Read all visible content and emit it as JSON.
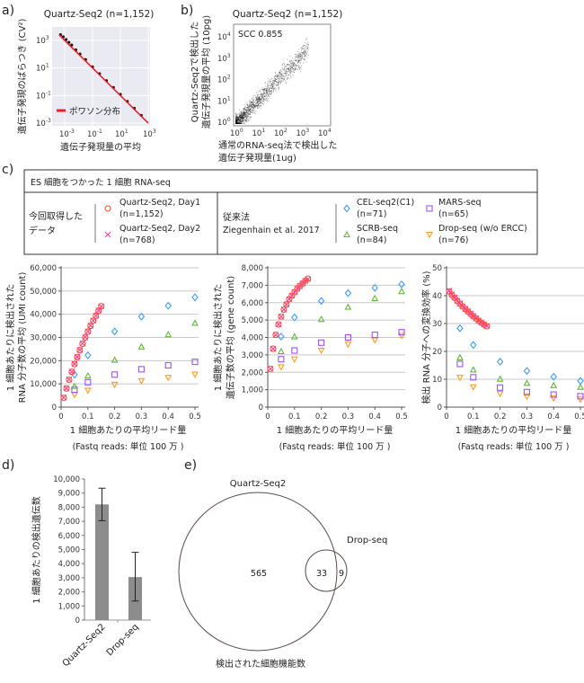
{
  "panels": {
    "a": {
      "label": "a)",
      "title": "Quartz-Seq2 (n=1,152)",
      "xlabel": "遺伝子発現量の平均",
      "ylabel": "遺伝子発現のばらつき (CV²)",
      "legend": "ポワソン分布"
    },
    "b": {
      "label": "b)",
      "title": "Quartz-Seq2 (n=1,152)",
      "xlabel_lines": [
        "通常のRNA-seq法で検出した",
        "遺伝子発現量(1ug)"
      ],
      "ylabel_lines": [
        "Quartz-Seq2で検出した",
        "遺伝子発現量の平均 (10pg)"
      ],
      "annotation": "SCC 0.855"
    },
    "c": {
      "label": "c)"
    },
    "d": {
      "label": "d)"
    },
    "e": {
      "label": "e)"
    }
  },
  "legend_box": {
    "header": "ES 細胞をつかった 1 細胞 RNA-seq",
    "left_title_lines": [
      "今回取得した",
      "データ"
    ],
    "left_items": [
      {
        "name": "Quartz-Seq2, Day1",
        "n": "(n=1,152)",
        "marker": "circle",
        "color": "#ff4a3d"
      },
      {
        "name": "Quartz-Seq2, Day2",
        "n": "(n=768)",
        "marker": "cross",
        "color": "#ff3b9a"
      }
    ],
    "right_title_lines": [
      "従来法",
      "Ziegenhain et al. 2017"
    ],
    "right_items": [
      {
        "name": "CEL-seq2(C1)",
        "n": "(n=71)",
        "marker": "diamond",
        "color": "#3d9bff"
      },
      {
        "name": "SCRB-seq",
        "n": "(n=84)",
        "marker": "triangle",
        "color": "#62b83a"
      },
      {
        "name": "MARS-seq",
        "n": "(n=65)",
        "marker": "square",
        "color": "#9a55f0"
      },
      {
        "name": "Drop-seq (w/o ERCC)",
        "n": "(n=76)",
        "marker": "triangle-down",
        "color": "#ff9a1f"
      }
    ]
  },
  "chart_data": [
    {
      "id": "a",
      "type": "scatter",
      "xscale": "log",
      "yscale": "log",
      "title": "Quartz-Seq2 (n=1,152)",
      "xlabel": "遺伝子発現量の平均",
      "ylabel": "遺伝子発現のばらつき (CV²)",
      "xtick_exponents": [
        -3,
        -1,
        1,
        3
      ],
      "ytick_exponents": [
        -3,
        -1,
        1,
        3
      ],
      "xlim_exp": [
        -3.9,
        3.2
      ],
      "ylim_exp": [
        -3.2,
        4.0
      ],
      "grid": true,
      "legend": "bottom-left",
      "poisson_line": {
        "name": "ポワソン分布",
        "color": "#e8202a",
        "x_exp_range": [
          -3.4,
          3.0
        ],
        "relation": "CV² = 1 / mean"
      },
      "observed_log10": [
        [
          -3.3,
          3.35
        ],
        [
          -3.1,
          3.2
        ],
        [
          -2.9,
          3.0
        ],
        [
          -2.7,
          2.8
        ],
        [
          -2.5,
          2.6
        ],
        [
          -2.2,
          2.25
        ],
        [
          -1.9,
          1.95
        ],
        [
          -1.5,
          1.55
        ],
        [
          -1.0,
          1.02
        ],
        [
          -0.5,
          0.52
        ],
        [
          0,
          0.02
        ],
        [
          0.5,
          -0.48
        ],
        [
          1.0,
          -0.98
        ],
        [
          1.5,
          -1.49
        ],
        [
          2.0,
          -1.99
        ],
        [
          2.5,
          -2.5
        ]
      ]
    },
    {
      "id": "b",
      "type": "scatter",
      "xscale": "log",
      "yscale": "log",
      "title": "Quartz-Seq2 (n=1,152)",
      "annotation": "SCC 0.855",
      "scc": 0.855,
      "xtick_exponents": [
        0,
        1,
        2,
        3,
        4
      ],
      "ytick_exponents": [
        0,
        1,
        2,
        3,
        4
      ],
      "xlim_exp": [
        -0.1,
        4.3
      ],
      "ylim_exp": [
        -0.1,
        4.6
      ],
      "grid": false
    },
    {
      "id": "c1",
      "type": "scatter",
      "ylabel_lines": [
        "1 細胞あたりに検出された",
        "RNA 分子数の平均 (UMI count)"
      ],
      "xlabel_lines": [
        "1 細胞あたりの平均リード量",
        "(Fastq reads: 単位 100 万 )"
      ],
      "xlim": [
        0,
        0.5
      ],
      "ylim": [
        0,
        60000
      ],
      "xtick_labels": [
        "0",
        "0.1",
        "0.2",
        "0.3",
        "0.4",
        "0.5"
      ],
      "xticks": [
        0,
        0.1,
        0.2,
        0.3,
        0.4,
        0.5
      ],
      "ytick_labels": [
        "0",
        "10,000",
        "20,000",
        "30,000",
        "40,000",
        "50,000",
        "60,000"
      ],
      "yticks": [
        0,
        10000,
        20000,
        30000,
        40000,
        50000,
        60000
      ],
      "grid": "horizontal",
      "quartz_x": [
        0.01,
        0.02,
        0.03,
        0.04,
        0.05,
        0.06,
        0.07,
        0.08,
        0.09,
        0.1,
        0.11,
        0.12,
        0.13,
        0.14,
        0.15
      ],
      "other_x": [
        0.05,
        0.1,
        0.2,
        0.3,
        0.4,
        0.5
      ],
      "series": [
        {
          "key": "day1",
          "values": [
            4000,
            8000,
            11800,
            15200,
            18500,
            21500,
            24500,
            27300,
            30000,
            32500,
            35000,
            37200,
            39300,
            41500,
            43500
          ]
        },
        {
          "key": "day2",
          "values": [
            4100,
            8100,
            11900,
            15300,
            18600,
            21600,
            24600,
            27400,
            30100,
            32600,
            35100,
            37300,
            39400,
            41600,
            43400
          ]
        },
        {
          "key": "cel",
          "values": [
            14000,
            22300,
            32600,
            39000,
            43700,
            47300
          ]
        },
        {
          "key": "scrb",
          "values": [
            9000,
            13500,
            20300,
            26000,
            31300,
            36200
          ]
        },
        {
          "key": "mars",
          "values": [
            7500,
            10700,
            14000,
            16300,
            18000,
            19500
          ]
        },
        {
          "key": "drop",
          "values": [
            5300,
            7200,
            9700,
            11300,
            12700,
            14100
          ]
        }
      ]
    },
    {
      "id": "c2",
      "type": "scatter",
      "ylabel_lines": [
        "1 細胞あたりに検出された",
        "遺伝子数の平均 (gene count)"
      ],
      "xlabel_lines": [
        "1 細胞あたりの平均リード量",
        "(Fastq reads: 単位 100 万 )"
      ],
      "xlim": [
        0,
        0.5
      ],
      "ylim": [
        0,
        8000
      ],
      "xtick_labels": [
        "0",
        "0.1",
        "0.2",
        "0.3",
        "0.4",
        "0.5"
      ],
      "xticks": [
        0,
        0.1,
        0.2,
        0.3,
        0.4,
        0.5
      ],
      "ytick_labels": [
        "0",
        "1,000",
        "2,000",
        "3,000",
        "4,000",
        "5,000",
        "6,000",
        "7,000",
        "8,000"
      ],
      "yticks": [
        0,
        1000,
        2000,
        3000,
        4000,
        5000,
        6000,
        7000,
        8000
      ],
      "grid": "horizontal",
      "quartz_x": [
        0.01,
        0.02,
        0.03,
        0.04,
        0.05,
        0.06,
        0.07,
        0.08,
        0.09,
        0.1,
        0.11,
        0.12,
        0.13,
        0.14,
        0.15
      ],
      "other_x": [
        0.05,
        0.1,
        0.2,
        0.3,
        0.4,
        0.5
      ],
      "series": [
        {
          "key": "day1",
          "values": [
            2200,
            3350,
            4150,
            4750,
            5200,
            5600,
            5900,
            6200,
            6400,
            6600,
            6800,
            6950,
            7100,
            7250,
            7380
          ]
        },
        {
          "key": "day2",
          "values": [
            2200,
            3350,
            4150,
            4750,
            5200,
            5600,
            5900,
            6200,
            6400,
            6600,
            6800,
            6950,
            7100,
            7250,
            7350
          ]
        },
        {
          "key": "cel",
          "values": [
            4050,
            5150,
            6100,
            6550,
            6850,
            7050
          ]
        },
        {
          "key": "scrb",
          "values": [
            3200,
            4050,
            5050,
            5750,
            6250,
            6650
          ]
        },
        {
          "key": "mars",
          "values": [
            2750,
            3250,
            3700,
            4000,
            4150,
            4300
          ]
        },
        {
          "key": "drop",
          "values": [
            2300,
            2750,
            3250,
            3600,
            3850,
            4100
          ]
        }
      ]
    },
    {
      "id": "c3",
      "type": "scatter",
      "ylabel_lines": [
        "検出 RNA 分子への変換効率 (%)"
      ],
      "xlabel_lines": [
        "1 細胞あたりの平均リード量",
        "(Fastq reads: 単位 100 万 )"
      ],
      "xlim": [
        0,
        0.5
      ],
      "ylim": [
        0,
        50
      ],
      "xtick_labels": [
        "0",
        "0.1",
        "0.2",
        "0.3",
        "0.4",
        "0.5"
      ],
      "xticks": [
        0,
        0.1,
        0.2,
        0.3,
        0.4,
        0.5
      ],
      "ytick_labels": [
        "0",
        "10",
        "20",
        "30",
        "40",
        "50"
      ],
      "yticks": [
        0,
        10,
        20,
        30,
        40,
        50
      ],
      "grid": "horizontal",
      "quartz_x": [
        0.01,
        0.02,
        0.03,
        0.04,
        0.05,
        0.06,
        0.07,
        0.08,
        0.09,
        0.1,
        0.11,
        0.12,
        0.13,
        0.14,
        0.15
      ],
      "other_x": [
        0.05,
        0.1,
        0.2,
        0.3,
        0.4,
        0.5
      ],
      "series": [
        {
          "key": "day1",
          "values": [
            41.5,
            40.3,
            39.2,
            38.1,
            37.1,
            36.1,
            35.2,
            34.3,
            33.4,
            32.6,
            31.8,
            31.0,
            30.3,
            29.6,
            29.0
          ]
        },
        {
          "key": "day2",
          "values": [
            41.8,
            40.5,
            39.3,
            38.2,
            37.2,
            36.2,
            35.3,
            34.4,
            33.5,
            32.7,
            31.9,
            31.1,
            30.4,
            29.7,
            29.1
          ]
        },
        {
          "key": "cel",
          "values": [
            28.3,
            22.3,
            16.3,
            13.0,
            10.9,
            9.4
          ]
        },
        {
          "key": "scrb",
          "values": [
            17.8,
            13.4,
            10.1,
            8.6,
            7.8,
            7.2
          ]
        },
        {
          "key": "mars",
          "values": [
            15.5,
            10.7,
            7.0,
            5.4,
            4.5,
            3.9
          ]
        },
        {
          "key": "drop",
          "values": [
            10.6,
            7.2,
            4.8,
            3.8,
            3.2,
            2.8
          ]
        }
      ]
    },
    {
      "id": "d",
      "type": "bar",
      "ylabel": "1 細胞あたりの検出遺伝数",
      "categories": [
        "Quartz-Seq2",
        "Drop-seq"
      ],
      "values": [
        8200,
        3050
      ],
      "error_low": [
        7050,
        1350
      ],
      "error_high": [
        9350,
        4800
      ],
      "ylim": [
        0,
        10000
      ],
      "ytick_labels": [
        "0",
        "1,000",
        "2,000",
        "3,000",
        "4,000",
        "5,000",
        "6,000",
        "7,000",
        "8,000",
        "9,000",
        "10,000"
      ],
      "yticks": [
        0,
        1000,
        2000,
        3000,
        4000,
        5000,
        6000,
        7000,
        8000,
        9000,
        10000
      ],
      "bar_color": "#8c8c8c"
    },
    {
      "id": "e",
      "type": "venn",
      "caption": "検出された細胞機能数",
      "sets": [
        "Quartz-Seq2",
        "Drop-seq"
      ],
      "only_a": "565",
      "both": "33",
      "only_b": "9"
    }
  ]
}
